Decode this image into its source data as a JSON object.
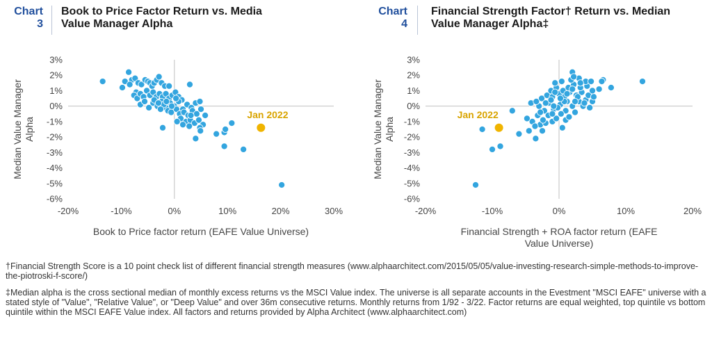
{
  "charts": [
    {
      "number_word": "Chart",
      "number": "3",
      "title_lines": [
        "Book to Price Factor Return vs. Media",
        "Value Manager Alpha"
      ],
      "annotation": "Jan 2022"
    },
    {
      "number_word": "Chart",
      "number": "4",
      "title_lines": [
        "Financial Strength Factor† Return vs. Median",
        "Value Manager Alpha‡"
      ],
      "annotation": "Jan 2022"
    }
  ],
  "footnotes": [
    "†Financial Strength Score is a 10 point check list of different financial strength measures (www.alphaarchitect.com/2015/05/05/value-investing-research-simple-methods-to-improve-the-piotroski-f-score/)",
    "‡Median alpha is the cross sectional median of monthly excess returns vs the MSCI Value index. The universe is all separate accounts in the Evestment \"MSCI EAFE\" universe with a stated style of \"Value\", \"Relative Value\", or \"Deep Value\" and over 36m consecutive returns. Monthly returns from 1/92 - 3/22. Factor returns are equal weighted, top quintile vs bottom quintile within the MSCI EAFE Value index. All factors and returns provided by Alpha Architect (www.alphaarchitect.com)"
  ],
  "colors": {
    "point": "#33a5df",
    "highlight": "#f0b400",
    "annotation": "#d9a400",
    "axis": "#bfbfbf",
    "chart_number": "#1f4e9c"
  },
  "chart_data": [
    {
      "type": "scatter",
      "xlabel_lines": [
        "Book to Price factor return (EAFE Value Universe)"
      ],
      "ylabel_lines": [
        "Median Value Manager",
        "Alpha"
      ],
      "xlim": [
        -20,
        30
      ],
      "ylim": [
        -6,
        3
      ],
      "xticks": [
        -20,
        -10,
        0,
        10,
        20,
        30
      ],
      "yticks": [
        3,
        2,
        1,
        0,
        -1,
        -2,
        -3,
        -4,
        -5,
        -6
      ],
      "unit": "%",
      "highlight": {
        "label": "Jan 2022",
        "x": 16.3,
        "y": -1.4
      },
      "points": [
        [
          -13.5,
          1.6
        ],
        [
          -8.6,
          2.2
        ],
        [
          -8.0,
          1.7
        ],
        [
          -9.3,
          1.6
        ],
        [
          -9.8,
          1.2
        ],
        [
          -7.4,
          1.8
        ],
        [
          -8.4,
          1.4
        ],
        [
          -7.2,
          0.9
        ],
        [
          -6.8,
          1.5
        ],
        [
          -6.2,
          1.4
        ],
        [
          -5.5,
          1.7
        ],
        [
          -5.0,
          1.6
        ],
        [
          -4.6,
          1.5
        ],
        [
          -4.2,
          1.3
        ],
        [
          -3.8,
          1.5
        ],
        [
          -3.3,
          1.7
        ],
        [
          -2.9,
          1.9
        ],
        [
          -2.4,
          1.5
        ],
        [
          -1.8,
          1.3
        ],
        [
          -1.0,
          1.3
        ],
        [
          -7.6,
          0.7
        ],
        [
          -7.0,
          0.5
        ],
        [
          -6.4,
          0.8
        ],
        [
          -5.8,
          0.6
        ],
        [
          -5.2,
          1.0
        ],
        [
          -4.6,
          0.7
        ],
        [
          -4.0,
          0.9
        ],
        [
          -3.4,
          0.6
        ],
        [
          -2.8,
          0.8
        ],
        [
          -2.2,
          0.6
        ],
        [
          -1.6,
          0.8
        ],
        [
          -1.0,
          0.5
        ],
        [
          -0.4,
          0.7
        ],
        [
          0.2,
          0.9
        ],
        [
          0.8,
          0.6
        ],
        [
          1.4,
          0.4
        ],
        [
          -6.4,
          0.1
        ],
        [
          -5.6,
          0.3
        ],
        [
          -4.8,
          -0.1
        ],
        [
          -4.0,
          0.2
        ],
        [
          -3.2,
          0.0
        ],
        [
          -2.4,
          0.3
        ],
        [
          -1.6,
          -0.1
        ],
        [
          -0.8,
          0.2
        ],
        [
          0.0,
          0.0
        ],
        [
          0.8,
          0.3
        ],
        [
          1.6,
          -0.2
        ],
        [
          2.4,
          0.1
        ],
        [
          3.2,
          -0.1
        ],
        [
          4.0,
          0.2
        ],
        [
          4.8,
          0.3
        ],
        [
          -3.8,
          0.4
        ],
        [
          -2.0,
          0.1
        ],
        [
          -1.2,
          -0.3
        ],
        [
          -0.6,
          -0.4
        ],
        [
          0.4,
          -0.2
        ],
        [
          1.0,
          -0.5
        ],
        [
          1.8,
          -0.4
        ],
        [
          2.6,
          -0.6
        ],
        [
          3.4,
          -0.3
        ],
        [
          4.2,
          -0.5
        ],
        [
          5.0,
          -0.2
        ],
        [
          5.8,
          -0.6
        ],
        [
          1.2,
          -0.8
        ],
        [
          2.2,
          -1.0
        ],
        [
          3.0,
          -0.9
        ],
        [
          3.8,
          -1.1
        ],
        [
          4.6,
          -0.9
        ],
        [
          5.4,
          -1.2
        ],
        [
          0.5,
          -1.0
        ],
        [
          1.6,
          -1.2
        ],
        [
          2.8,
          -1.3
        ],
        [
          4.8,
          -1.4
        ],
        [
          -2.2,
          -1.4
        ],
        [
          -0.5,
          0.0
        ],
        [
          -1.5,
          0.3
        ],
        [
          0.3,
          0.5
        ],
        [
          -2.6,
          -0.2
        ],
        [
          2.9,
          1.4
        ],
        [
          3.1,
          -0.6
        ],
        [
          -3.0,
          0.2
        ],
        [
          4.9,
          -1.6
        ],
        [
          4.0,
          -2.1
        ],
        [
          7.9,
          -1.8
        ],
        [
          9.4,
          -1.7
        ],
        [
          9.6,
          -1.5
        ],
        [
          10.8,
          -1.1
        ],
        [
          9.4,
          -2.6
        ],
        [
          13.0,
          -2.8
        ],
        [
          20.2,
          -5.1
        ]
      ]
    },
    {
      "type": "scatter",
      "xlabel_lines": [
        "Financial Strength + ROA factor return (EAFE",
        "Value Universe)"
      ],
      "ylabel_lines": [
        "Median Value Manager",
        "Alpha"
      ],
      "xlim": [
        -20,
        20
      ],
      "ylim": [
        -6,
        3
      ],
      "xticks": [
        -20,
        -10,
        0,
        10,
        20
      ],
      "yticks": [
        3,
        2,
        1,
        0,
        -1,
        -2,
        -3,
        -4,
        -5,
        -6
      ],
      "unit": "%",
      "highlight": {
        "label": "Jan 2022",
        "x": -9.0,
        "y": -1.4
      },
      "points": [
        [
          -12.5,
          -5.1
        ],
        [
          -11.5,
          -1.5
        ],
        [
          -10.0,
          -2.8
        ],
        [
          -8.8,
          -2.6
        ],
        [
          -7.0,
          -0.3
        ],
        [
          -6.0,
          -1.8
        ],
        [
          -4.5,
          -1.6
        ],
        [
          -3.5,
          -2.1
        ],
        [
          -2.5,
          -1.6
        ],
        [
          -2.8,
          -1.2
        ],
        [
          -4.0,
          -1.0
        ],
        [
          -3.2,
          -0.6
        ],
        [
          -2.0,
          -1.1
        ],
        [
          -1.0,
          -1.0
        ],
        [
          -0.4,
          -0.8
        ],
        [
          0.5,
          -1.4
        ],
        [
          1.0,
          -0.9
        ],
        [
          2.4,
          -0.4
        ],
        [
          -4.2,
          0.2
        ],
        [
          -3.0,
          0.0
        ],
        [
          -2.2,
          -0.3
        ],
        [
          -1.5,
          0.2
        ],
        [
          -0.8,
          -0.2
        ],
        [
          0.2,
          0.1
        ],
        [
          1.2,
          0.3
        ],
        [
          2.0,
          0.0
        ],
        [
          3.0,
          0.3
        ],
        [
          4.0,
          0.4
        ],
        [
          5.0,
          0.3
        ],
        [
          -3.4,
          0.3
        ],
        [
          -2.6,
          0.5
        ],
        [
          -1.8,
          0.7
        ],
        [
          -1.0,
          0.6
        ],
        [
          0.0,
          0.8
        ],
        [
          0.8,
          0.6
        ],
        [
          1.6,
          0.9
        ],
        [
          2.6,
          0.7
        ],
        [
          3.4,
          0.9
        ],
        [
          4.4,
          0.7
        ],
        [
          5.2,
          0.6
        ],
        [
          -2.0,
          0.2
        ],
        [
          -1.2,
          1.0
        ],
        [
          -0.4,
          1.2
        ],
        [
          0.6,
          1.0
        ],
        [
          1.4,
          1.2
        ],
        [
          2.2,
          1.4
        ],
        [
          3.2,
          1.2
        ],
        [
          4.2,
          1.3
        ],
        [
          5.0,
          1.0
        ],
        [
          6.0,
          1.1
        ],
        [
          -0.6,
          1.5
        ],
        [
          0.4,
          1.6
        ],
        [
          1.8,
          1.7
        ],
        [
          3.0,
          1.8
        ],
        [
          4.0,
          1.6
        ],
        [
          2.0,
          2.2
        ],
        [
          2.2,
          1.9
        ],
        [
          0.8,
          0.3
        ],
        [
          -1.6,
          -0.6
        ],
        [
          3.6,
          0.0
        ],
        [
          4.6,
          -0.1
        ],
        [
          -0.2,
          -0.1
        ],
        [
          1.0,
          -0.3
        ],
        [
          -2.8,
          -0.4
        ],
        [
          -4.8,
          -0.8
        ],
        [
          -1.2,
          0.4
        ],
        [
          0.2,
          0.5
        ],
        [
          2.8,
          0.6
        ],
        [
          3.8,
          0.2
        ],
        [
          -0.6,
          0.9
        ],
        [
          1.2,
          0.8
        ],
        [
          2.0,
          1.1
        ],
        [
          4.8,
          1.6
        ],
        [
          6.6,
          1.7
        ],
        [
          6.4,
          1.6
        ],
        [
          7.8,
          1.2
        ],
        [
          12.5,
          1.6
        ],
        [
          -3.6,
          -1.3
        ],
        [
          -2.4,
          -0.9
        ],
        [
          0.3,
          -0.5
        ],
        [
          1.5,
          -0.7
        ],
        [
          -1.0,
          -0.5
        ],
        [
          2.4,
          0.3
        ],
        [
          3.2,
          1.5
        ],
        [
          -0.8,
          0.0
        ]
      ]
    }
  ]
}
